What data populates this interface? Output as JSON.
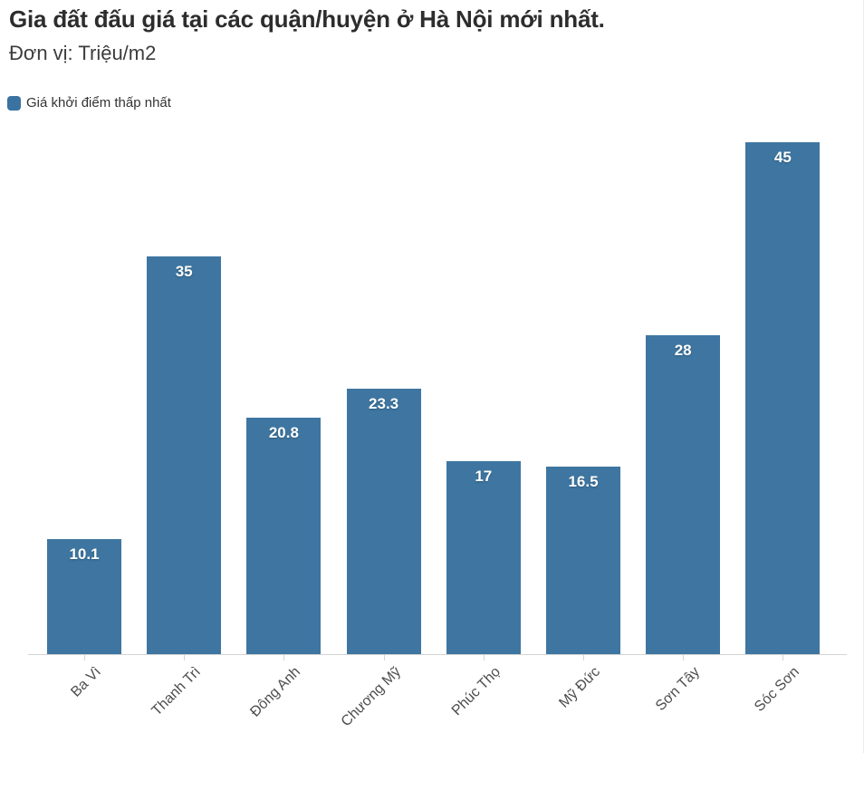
{
  "header": {
    "title": "Gia đất đấu giá tại các quận/huyện ở Hà Nội mới nhất.",
    "subtitle": "Đơn vị: Triệu/m2"
  },
  "legend": {
    "label": "Giá khởi điểm thấp nhất",
    "swatch_color": "#3a72a1"
  },
  "chart_data": {
    "type": "bar",
    "title": "Gia đất đấu giá tại các quận/huyện ở Hà Nội mới nhất.",
    "subtitle": "Đơn vị: Triệu/m2",
    "unit": "Triệu/m2",
    "series_name": "Giá khởi điểm thấp nhất",
    "categories": [
      "Ba Vì",
      "Thanh Trì",
      "Đông Anh",
      "Chương Mỹ",
      "Phúc Thọ",
      "Mỹ Đức",
      "Sơn Tây",
      "Sóc Sơn"
    ],
    "values": [
      10.1,
      35,
      20.8,
      23.3,
      17,
      16.5,
      28,
      45
    ],
    "ylim": [
      0,
      45
    ],
    "grid": false,
    "bar_color": "#3e76a1",
    "value_label_color": "#ffffff",
    "value_label_position": "inside-top",
    "legend_position": "top-left",
    "x_tick_label_rotation": -45
  }
}
